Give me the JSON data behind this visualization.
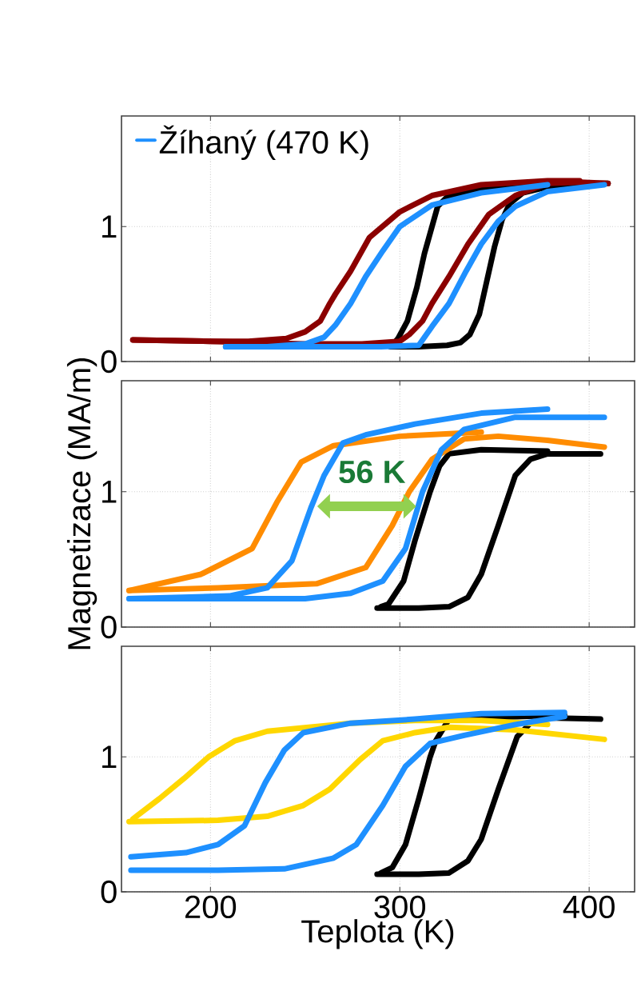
{
  "chart_data": [
    {
      "type": "line",
      "xlim": [
        153,
        424
      ],
      "ylim": [
        0,
        1.82
      ],
      "xticks": [
        200,
        300,
        400
      ],
      "yticks": [
        0,
        1
      ],
      "grid": true,
      "tick_labels": "y",
      "legend": "top left",
      "series": [
        {
          "color": "#000000",
          "x": [
            295,
            310,
            325,
            332,
            337,
            342,
            346,
            350,
            354,
            358,
            365,
            380,
            395,
            410
          ],
          "values": [
            0.11,
            0.11,
            0.12,
            0.14,
            0.2,
            0.35,
            0.6,
            0.85,
            1.05,
            1.17,
            1.25,
            1.3,
            1.32,
            1.32
          ]
        },
        {
          "color": "#000000",
          "x": [
            296,
            299,
            304,
            309,
            313,
            317,
            320,
            325,
            340,
            370,
            395
          ],
          "values": [
            0.12,
            0.17,
            0.3,
            0.55,
            0.8,
            1.0,
            1.15,
            1.22,
            1.27,
            1.3,
            1.32
          ]
        },
        {
          "color": "#8b0000",
          "x": [
            159,
            200,
            250,
            280,
            300,
            305,
            312,
            317,
            326,
            336,
            347,
            361,
            378,
            395,
            410
          ],
          "values": [
            0.16,
            0.15,
            0.13,
            0.13,
            0.15,
            0.2,
            0.3,
            0.43,
            0.63,
            0.87,
            1.09,
            1.23,
            1.32,
            1.33,
            1.32
          ]
        },
        {
          "color": "#8b0000",
          "x": [
            159,
            200,
            220,
            240,
            250,
            258,
            263,
            266,
            274,
            284,
            300,
            317,
            343,
            378,
            395
          ],
          "values": [
            0.16,
            0.15,
            0.15,
            0.17,
            0.22,
            0.3,
            0.43,
            0.5,
            0.67,
            0.92,
            1.11,
            1.23,
            1.31,
            1.34,
            1.34
          ]
        },
        {
          "name": "Žíhaný (470 K)",
          "color": "#1e90ff",
          "x": [
            208,
            250,
            290,
            310,
            317,
            326,
            335,
            343,
            352,
            361,
            378,
            408
          ],
          "values": [
            0.11,
            0.11,
            0.11,
            0.12,
            0.26,
            0.43,
            0.67,
            0.87,
            1.04,
            1.15,
            1.26,
            1.31
          ]
        },
        {
          "color": "#1e90ff",
          "x": [
            208,
            230,
            250,
            260,
            266,
            274,
            282,
            291,
            300,
            317,
            343,
            378
          ],
          "values": [
            0.11,
            0.11,
            0.13,
            0.18,
            0.27,
            0.43,
            0.63,
            0.82,
            1.0,
            1.16,
            1.25,
            1.31
          ]
        }
      ]
    },
    {
      "type": "line",
      "xlim": [
        153,
        424
      ],
      "ylim": [
        0,
        1.82
      ],
      "xticks": [
        200,
        300,
        400
      ],
      "yticks": [
        0,
        1
      ],
      "grid": true,
      "tick_labels": "y",
      "ylabel": "Magnetizace (MA/m)",
      "annotations": [
        "56 K"
      ],
      "series": [
        {
          "color": "#000000",
          "x": [
            288,
            310,
            326,
            336,
            343,
            352,
            361,
            369,
            378,
            406
          ],
          "values": [
            0.14,
            0.14,
            0.15,
            0.22,
            0.39,
            0.75,
            1.12,
            1.24,
            1.28,
            1.28
          ]
        },
        {
          "color": "#000000",
          "x": [
            290,
            294,
            302,
            308,
            316,
            321,
            326,
            343,
            378
          ],
          "values": [
            0.15,
            0.17,
            0.34,
            0.64,
            1.0,
            1.19,
            1.28,
            1.31,
            1.3
          ]
        },
        {
          "color": "#ff8c00",
          "x": [
            157,
            204,
            256,
            282,
            296,
            305,
            317,
            334,
            352,
            378,
            408
          ],
          "values": [
            0.27,
            0.29,
            0.32,
            0.44,
            0.75,
            1.0,
            1.24,
            1.39,
            1.41,
            1.38,
            1.33
          ]
        },
        {
          "color": "#ff8c00",
          "x": [
            157,
            195,
            222,
            235,
            248,
            265,
            300,
            343
          ],
          "values": [
            0.27,
            0.39,
            0.58,
            0.92,
            1.22,
            1.34,
            1.41,
            1.44
          ]
        },
        {
          "color": "#1e90ff",
          "x": [
            157,
            250,
            274,
            291,
            303,
            312,
            322,
            334,
            361,
            408
          ],
          "values": [
            0.21,
            0.21,
            0.25,
            0.34,
            0.58,
            1.0,
            1.31,
            1.46,
            1.55,
            1.55
          ]
        },
        {
          "color": "#1e90ff",
          "x": [
            157,
            210,
            230,
            243,
            253,
            260,
            270,
            282,
            308,
            343,
            378
          ],
          "values": [
            0.21,
            0.23,
            0.29,
            0.49,
            0.88,
            1.12,
            1.36,
            1.42,
            1.5,
            1.58,
            1.61
          ]
        }
      ]
    },
    {
      "type": "line",
      "xlim": [
        153,
        424
      ],
      "ylim": [
        0,
        1.82
      ],
      "xticks": [
        200,
        300,
        400
      ],
      "yticks": [
        0,
        1
      ],
      "grid": true,
      "xlabel": "Teplota (K)",
      "series": [
        {
          "color": "#000000",
          "x": [
            288,
            310,
            326,
            336,
            343,
            352,
            362,
            369,
            378,
            406
          ],
          "values": [
            0.13,
            0.13,
            0.14,
            0.23,
            0.39,
            0.76,
            1.15,
            1.25,
            1.29,
            1.28
          ]
        },
        {
          "color": "#000000",
          "x": [
            290,
            296,
            303,
            310,
            316,
            319,
            326,
            343,
            387
          ],
          "values": [
            0.14,
            0.18,
            0.35,
            0.69,
            1.0,
            1.12,
            1.28,
            1.29,
            1.31
          ]
        },
        {
          "color": "#ffd700",
          "x": [
            157,
            204,
            230,
            249,
            263,
            279,
            291,
            308,
            326,
            361,
            408
          ],
          "values": [
            0.52,
            0.53,
            0.56,
            0.64,
            0.76,
            0.98,
            1.12,
            1.18,
            1.22,
            1.2,
            1.13
          ]
        },
        {
          "color": "#ffd700",
          "x": [
            159,
            173,
            186,
            199,
            213,
            230,
            274,
            308,
            343,
            378
          ],
          "values": [
            0.54,
            0.69,
            0.84,
            1.0,
            1.12,
            1.19,
            1.25,
            1.27,
            1.27,
            1.24
          ]
        },
        {
          "color": "#1e90ff",
          "x": [
            158,
            204,
            239,
            265,
            277,
            291,
            303,
            316,
            334,
            361,
            387
          ],
          "values": [
            0.16,
            0.16,
            0.17,
            0.25,
            0.35,
            0.64,
            0.93,
            1.1,
            1.16,
            1.24,
            1.3
          ]
        },
        {
          "color": "#1e90ff",
          "x": [
            158,
            187,
            204,
            218,
            229,
            239,
            249,
            274,
            308,
            343,
            387
          ],
          "values": [
            0.26,
            0.29,
            0.35,
            0.49,
            0.81,
            1.05,
            1.18,
            1.25,
            1.28,
            1.32,
            1.33
          ]
        }
      ]
    }
  ]
}
